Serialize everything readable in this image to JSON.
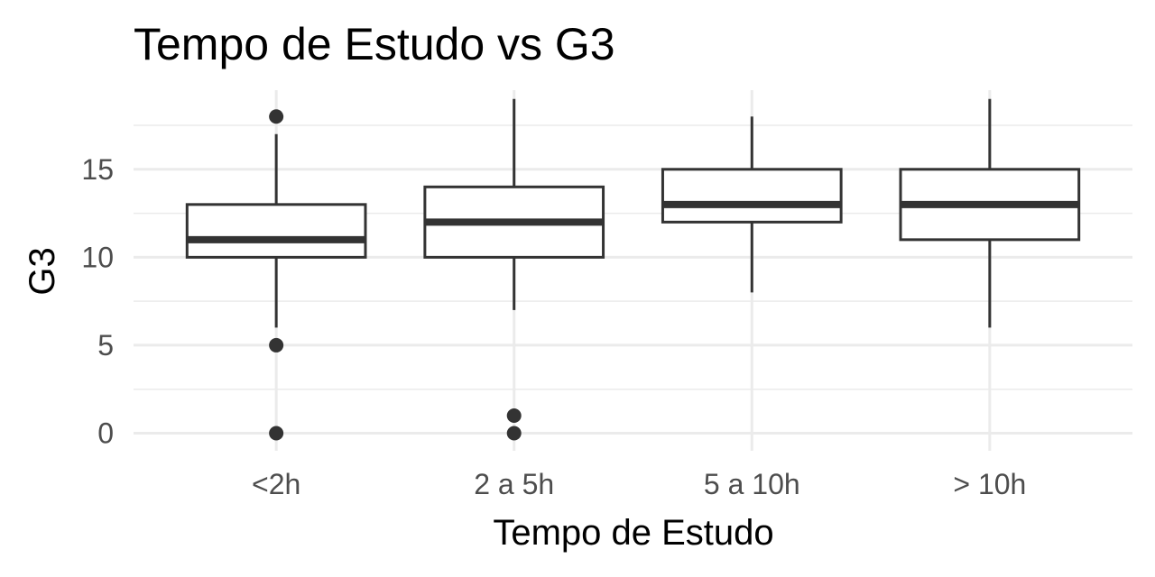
{
  "chart_data": {
    "type": "boxplot",
    "title": "Tempo de Estudo vs  G3",
    "xlabel": "Tempo de Estudo",
    "ylabel": "G3",
    "categories": [
      "<2h",
      "2 a 5h",
      "5 a 10h",
      "> 10h"
    ],
    "boxes": [
      {
        "category": "<2h",
        "whisker_low": 6,
        "q1": 10,
        "median": 11,
        "q3": 13,
        "whisker_high": 17,
        "outliers": [
          18,
          5,
          0
        ]
      },
      {
        "category": "2 a 5h",
        "whisker_low": 7,
        "q1": 10,
        "median": 12,
        "q3": 14,
        "whisker_high": 19,
        "outliers": [
          1,
          0
        ]
      },
      {
        "category": "5 a 10h",
        "whisker_low": 8,
        "q1": 12,
        "median": 13,
        "q3": 15,
        "whisker_high": 18,
        "outliers": []
      },
      {
        "category": "> 10h",
        "whisker_low": 6,
        "q1": 11,
        "median": 13,
        "q3": 15,
        "whisker_high": 19,
        "outliers": []
      }
    ],
    "y_ticks": [
      0,
      5,
      10,
      15
    ],
    "ylim": [
      -1,
      19.5
    ],
    "grid": true,
    "legend": "none",
    "colors": {
      "line": "#333333",
      "fill": "#ffffff",
      "grid": "#ebebeb",
      "tick_text": "#4d4d4d"
    }
  }
}
